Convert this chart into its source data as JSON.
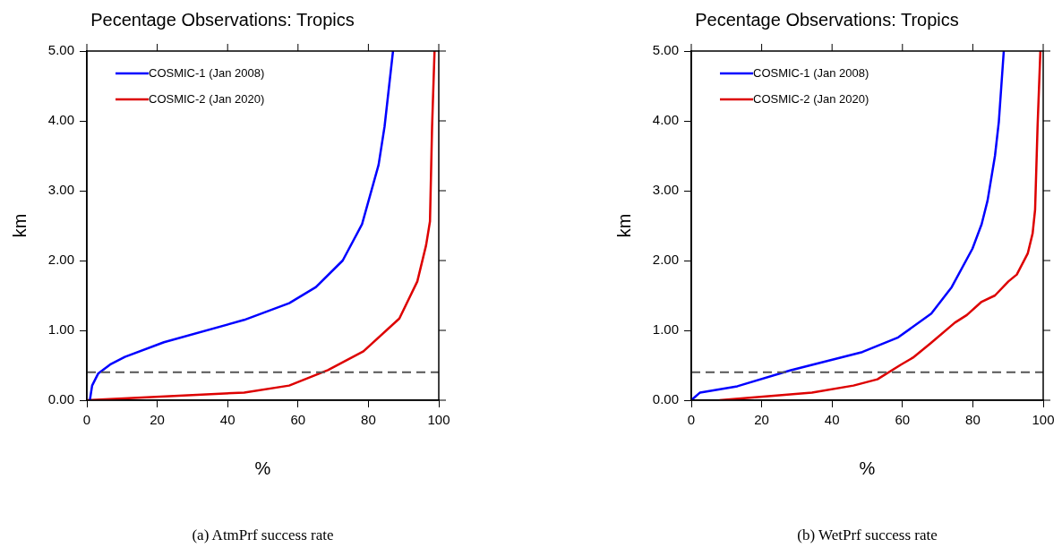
{
  "chart_data": [
    {
      "type": "line",
      "title": "Pecentage Observations: Tropics",
      "xlabel": "%",
      "ylabel": "km",
      "xlim": [
        0,
        100
      ],
      "xticks": [
        0,
        20,
        40,
        60,
        80,
        100
      ],
      "ylim": [
        0,
        5
      ],
      "yticks": [
        {
          "value": 0,
          "label": "0.00"
        },
        {
          "value": 1,
          "label": "1.00"
        },
        {
          "value": 2,
          "label": "2.00"
        },
        {
          "value": 3,
          "label": "3.00"
        },
        {
          "value": 4,
          "label": "4.00"
        },
        {
          "value": 5,
          "label": "5.00"
        }
      ],
      "legend": "top left",
      "line_style": "solid",
      "marker": "none",
      "series": [
        {
          "name": "COSMIC-1 (Jan 2008)",
          "color": "#0000ff",
          "x": [
            0.85,
            1.5,
            3.2,
            6.6,
            10.8,
            21.9,
            44.7,
            57.5,
            65.1,
            72.7,
            78.2,
            82.9,
            84.6,
            87.0
          ],
          "values": [
            0,
            0.21,
            0.38,
            0.51,
            0.62,
            0.83,
            1.15,
            1.39,
            1.62,
            2.0,
            2.52,
            3.37,
            3.92,
            5.0
          ]
        },
        {
          "name": "COSMIC-2 (Jan 2020)",
          "color": "#dd0000",
          "x": [
            0,
            44.7,
            57.5,
            68.5,
            78.6,
            88.8,
            93.9,
            96.4,
            97.5,
            98.1,
            98.8
          ],
          "values": [
            0,
            0.11,
            0.21,
            0.43,
            0.7,
            1.17,
            1.7,
            2.22,
            2.56,
            3.92,
            5.0
          ]
        }
      ],
      "ref_lines": [
        {
          "axis": "y",
          "value": 0.4,
          "color": "#555555",
          "line_style": "dashed"
        }
      ],
      "annotations": [
        "(a) AtmPrf success rate"
      ]
    },
    {
      "type": "line",
      "title": "Pecentage Observations: Tropics",
      "xlabel": "%",
      "ylabel": "km",
      "xlim": [
        0,
        100
      ],
      "xticks": [
        0,
        20,
        40,
        60,
        80,
        100
      ],
      "ylim": [
        0,
        5
      ],
      "yticks": [
        {
          "value": 0,
          "label": "0.00"
        },
        {
          "value": 1,
          "label": "1.00"
        },
        {
          "value": 2,
          "label": "2.00"
        },
        {
          "value": 3,
          "label": "3.00"
        },
        {
          "value": 4,
          "label": "4.00"
        },
        {
          "value": 5,
          "label": "5.00"
        }
      ],
      "legend": "top left",
      "line_style": "solid",
      "marker": "none",
      "series": [
        {
          "name": "COSMIC-1 (Jan 2008)",
          "color": "#0000ff",
          "x": [
            0,
            2.5,
            13.1,
            28.3,
            48.6,
            58.8,
            68.2,
            74.0,
            79.9,
            82.5,
            84.2,
            86.3,
            87.4,
            88.8
          ],
          "values": [
            0,
            0.11,
            0.2,
            0.43,
            0.69,
            0.9,
            1.24,
            1.62,
            2.17,
            2.52,
            2.86,
            3.5,
            3.99,
            5.0
          ]
        },
        {
          "name": "COSMIC-2 (Jan 2020)",
          "color": "#dd0000",
          "x": [
            8.0,
            34.3,
            46.1,
            52.9,
            59.6,
            63.0,
            67.9,
            74.9,
            78.3,
            82.5,
            86.3,
            90.1,
            92.5,
            95.6,
            97.0,
            97.7,
            98.4,
            99.2
          ],
          "values": [
            0,
            0.11,
            0.21,
            0.3,
            0.51,
            0.61,
            0.81,
            1.11,
            1.22,
            1.41,
            1.5,
            1.7,
            1.8,
            2.1,
            2.39,
            2.73,
            3.92,
            5.0
          ]
        }
      ],
      "ref_lines": [
        {
          "axis": "y",
          "value": 0.4,
          "color": "#555555",
          "line_style": "dashed"
        }
      ],
      "annotations": [
        "(b) WetPrf success rate"
      ]
    }
  ]
}
